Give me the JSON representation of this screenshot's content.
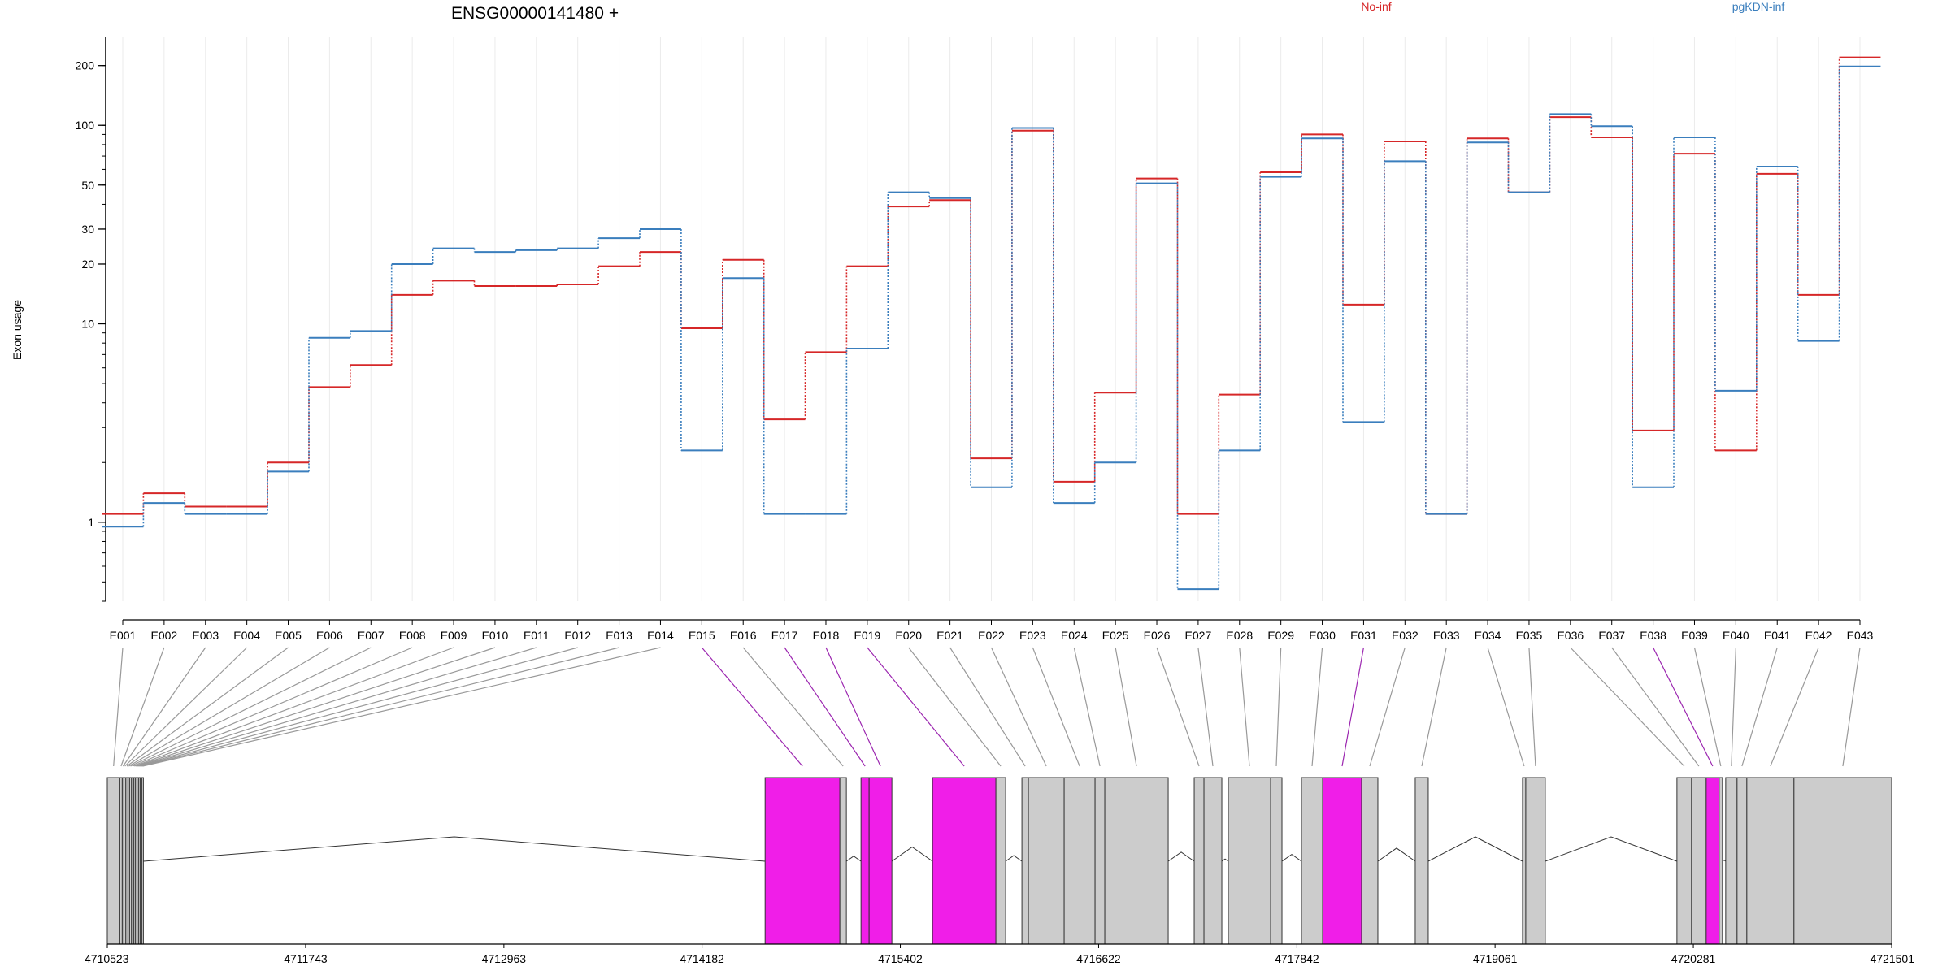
{
  "chart_data": {
    "type": "line",
    "title": "ENSG00000141480 +",
    "ylabel": "Exon usage",
    "xlabel": "",
    "y_scale": "log",
    "ylim": [
      0.4,
      280
    ],
    "y_ticks": [
      1,
      10,
      20,
      30,
      50,
      100,
      200
    ],
    "y_tick_labels": [
      "1",
      "10",
      "20",
      "30",
      "50",
      "100",
      "200"
    ],
    "grid": "vertical",
    "legend_placement": "top",
    "categories": [
      "E001",
      "E002",
      "E003",
      "E004",
      "E005",
      "E006",
      "E007",
      "E008",
      "E009",
      "E010",
      "E011",
      "E012",
      "E013",
      "E014",
      "E015",
      "E016",
      "E017",
      "E018",
      "E019",
      "E020",
      "E021",
      "E022",
      "E023",
      "E024",
      "E025",
      "E026",
      "E027",
      "E028",
      "E029",
      "E030",
      "E031",
      "E032",
      "E033",
      "E034",
      "E035",
      "E036",
      "E037",
      "E038",
      "E039",
      "E040",
      "E041",
      "E042",
      "E043"
    ],
    "series": [
      {
        "name": "No-inf",
        "color": "#d62728",
        "values": [
          1.1,
          1.4,
          1.2,
          1.2,
          2.0,
          4.8,
          6.2,
          14,
          16.5,
          15.5,
          15.5,
          15.8,
          19.5,
          23,
          9.5,
          21,
          3.3,
          7.2,
          19.5,
          39,
          42,
          2.1,
          94,
          1.6,
          4.5,
          54,
          1.1,
          4.4,
          58,
          90,
          12.5,
          83,
          1.1,
          86,
          46,
          110,
          87,
          2.9,
          72,
          2.3,
          57,
          14,
          220
        ]
      },
      {
        "name": "pgKDN-inf",
        "color": "#3a7ebd",
        "values": [
          0.95,
          1.25,
          1.1,
          1.1,
          1.8,
          8.5,
          9.2,
          20,
          24,
          23,
          23.5,
          24,
          27,
          30,
          2.3,
          17,
          1.1,
          1.1,
          7.5,
          46,
          43,
          1.5,
          97,
          1.25,
          2.0,
          51,
          0.46,
          2.3,
          55,
          86,
          3.2,
          66,
          1.1,
          82,
          46,
          114,
          99,
          1.5,
          87,
          4.6,
          62,
          8.2,
          198
        ]
      }
    ],
    "gene_model": {
      "x_ticks": [
        4710523,
        4711743,
        4712963,
        4714182,
        4715402,
        4716622,
        4717842,
        4719061,
        4720281,
        4721501
      ],
      "x_tick_labels": [
        "4710523",
        "4711743",
        "4712963",
        "4714182",
        "4715402",
        "4716622",
        "4717842",
        "4719061",
        "4720281",
        "4721501"
      ],
      "exon_color": "#cccccc",
      "highlight_color": "#f01ee8",
      "exons": [
        {
          "id": "E001",
          "start": 4710523,
          "end": 4710600,
          "hl": false
        },
        {
          "id": "E002",
          "start": 4710600,
          "end": 4710615,
          "hl": false
        },
        {
          "id": "E003",
          "start": 4710615,
          "end": 4710625,
          "hl": false
        },
        {
          "id": "E004",
          "start": 4710625,
          "end": 4710637,
          "hl": false
        },
        {
          "id": "E005",
          "start": 4710637,
          "end": 4710650,
          "hl": false
        },
        {
          "id": "E006",
          "start": 4710650,
          "end": 4710660,
          "hl": false
        },
        {
          "id": "E007",
          "start": 4710660,
          "end": 4710672,
          "hl": false
        },
        {
          "id": "E008",
          "start": 4710672,
          "end": 4710685,
          "hl": false
        },
        {
          "id": "E009",
          "start": 4710685,
          "end": 4710695,
          "hl": false
        },
        {
          "id": "E010",
          "start": 4710695,
          "end": 4710705,
          "hl": false
        },
        {
          "id": "E011",
          "start": 4710705,
          "end": 4710715,
          "hl": false
        },
        {
          "id": "E012",
          "start": 4710715,
          "end": 4710725,
          "hl": false
        },
        {
          "id": "E013",
          "start": 4710725,
          "end": 4710735,
          "hl": false
        },
        {
          "id": "E014",
          "start": 4710735,
          "end": 4710745,
          "hl": false
        },
        {
          "id": "E015",
          "start": 4714570,
          "end": 4715030,
          "hl": true
        },
        {
          "id": "E016",
          "start": 4715030,
          "end": 4715070,
          "hl": false
        },
        {
          "id": "E017",
          "start": 4715160,
          "end": 4715210,
          "hl": true
        },
        {
          "id": "E018",
          "start": 4715210,
          "end": 4715350,
          "hl": true
        },
        {
          "id": "E019",
          "start": 4715600,
          "end": 4715990,
          "hl": true
        },
        {
          "id": "E020",
          "start": 4715990,
          "end": 4716050,
          "hl": false
        },
        {
          "id": "E021",
          "start": 4716150,
          "end": 4716190,
          "hl": false
        },
        {
          "id": "E022",
          "start": 4716190,
          "end": 4716410,
          "hl": false
        },
        {
          "id": "E023",
          "start": 4716410,
          "end": 4716600,
          "hl": false
        },
        {
          "id": "E024",
          "start": 4716600,
          "end": 4716660,
          "hl": false
        },
        {
          "id": "E025",
          "start": 4716660,
          "end": 4717050,
          "hl": false
        },
        {
          "id": "E026",
          "start": 4717210,
          "end": 4717270,
          "hl": false
        },
        {
          "id": "E027",
          "start": 4717270,
          "end": 4717380,
          "hl": false
        },
        {
          "id": "E028",
          "start": 4717420,
          "end": 4717680,
          "hl": false
        },
        {
          "id": "E029",
          "start": 4717680,
          "end": 4717750,
          "hl": false
        },
        {
          "id": "E030",
          "start": 4717870,
          "end": 4718000,
          "hl": false
        },
        {
          "id": "E031",
          "start": 4718000,
          "end": 4718240,
          "hl": true
        },
        {
          "id": "E032",
          "start": 4718240,
          "end": 4718340,
          "hl": false
        },
        {
          "id": "E033",
          "start": 4718570,
          "end": 4718650,
          "hl": false
        },
        {
          "id": "E034",
          "start": 4719230,
          "end": 4719250,
          "hl": false
        },
        {
          "id": "E035",
          "start": 4719250,
          "end": 4719370,
          "hl": false
        },
        {
          "id": "E036",
          "start": 4720180,
          "end": 4720270,
          "hl": false
        },
        {
          "id": "E037",
          "start": 4720270,
          "end": 4720360,
          "hl": false
        },
        {
          "id": "E038",
          "start": 4720360,
          "end": 4720440,
          "hl": true
        },
        {
          "id": "E039",
          "start": 4720440,
          "end": 4720460,
          "hl": false
        },
        {
          "id": "E040",
          "start": 4720480,
          "end": 4720550,
          "hl": false
        },
        {
          "id": "E041",
          "start": 4720550,
          "end": 4720610,
          "hl": false
        },
        {
          "id": "E042",
          "start": 4720610,
          "end": 4720900,
          "hl": false
        },
        {
          "id": "E043",
          "start": 4720900,
          "end": 4721501,
          "hl": false
        }
      ]
    }
  }
}
